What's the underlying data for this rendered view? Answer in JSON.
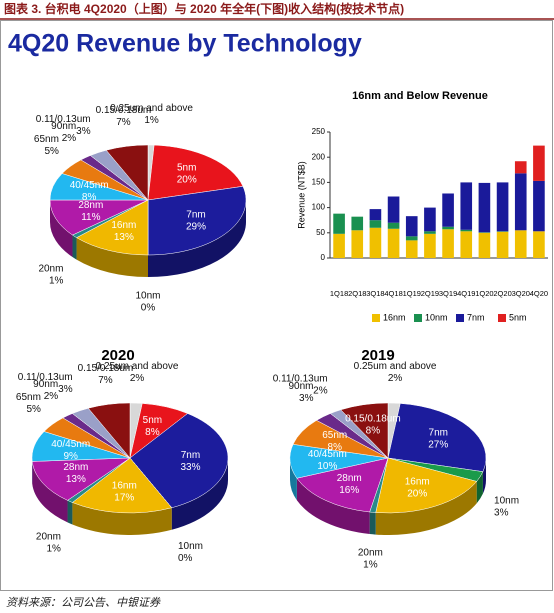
{
  "header": {
    "title": "图表 3. 台积电 4Q2020（上图）与 2020 年全年(下图)收入结构(按技术节点)",
    "subtitle": "4Q20 Revenue by Technology"
  },
  "chart_data": [
    {
      "type": "pie",
      "categories": [
        "0.25um and above",
        "5nm",
        "7nm",
        "10nm",
        "16nm",
        "20nm",
        "28nm",
        "40/45nm",
        "65nm",
        "90nm",
        "0.11/0.13um",
        "0.15/0.18um"
      ],
      "values": [
        1,
        20,
        29,
        0,
        13,
        1,
        11,
        8,
        5,
        2,
        3,
        7
      ],
      "value_labels": [
        "1%",
        "20%",
        "29%",
        "0%",
        "13%",
        "1%",
        "11%",
        "8%",
        "5%",
        "2%",
        "3%",
        "7%"
      ],
      "colors": [
        "#d8d8d8",
        "#e8141c",
        "#1c1c9c",
        "#1a9a4a",
        "#f0b800",
        "#2a8a8a",
        "#b01aa8",
        "#22b8f0",
        "#e87a10",
        "#6a2a8a",
        "#9aa0c8",
        "#8a1010"
      ]
    },
    {
      "type": "bar",
      "title": "16nm and Below Revenue",
      "ylabel": "Revenue (NT$B)",
      "categories": [
        "1Q18",
        "2Q18",
        "3Q18",
        "4Q18",
        "1Q19",
        "2Q19",
        "3Q19",
        "4Q19",
        "1Q20",
        "2Q20",
        "3Q20",
        "4Q20"
      ],
      "series": [
        {
          "name": "16nm",
          "color": "#f0c000",
          "values": [
            48,
            55,
            60,
            58,
            35,
            48,
            57,
            53,
            50,
            52,
            55,
            53
          ]
        },
        {
          "name": "10nm",
          "color": "#1a9050",
          "values": [
            40,
            27,
            15,
            12,
            8,
            5,
            5,
            3,
            1,
            1,
            0,
            0
          ]
        },
        {
          "name": "7nm",
          "color": "#1a1a9a",
          "values": [
            0,
            0,
            22,
            52,
            40,
            47,
            66,
            94,
            98,
            97,
            113,
            100
          ]
        },
        {
          "name": "5nm",
          "color": "#e02020",
          "values": [
            0,
            0,
            0,
            0,
            0,
            0,
            0,
            0,
            0,
            0,
            24,
            70
          ]
        }
      ],
      "ylim": [
        0,
        250
      ],
      "yticks": [
        0,
        50,
        100,
        150,
        200,
        250
      ],
      "stacked": true
    },
    {
      "type": "pie",
      "title": "2020",
      "categories": [
        "0.25um and above",
        "5nm",
        "7nm",
        "10nm",
        "16nm",
        "20nm",
        "28nm",
        "40/45nm",
        "65nm",
        "90nm",
        "0.11/0.13um",
        "0.15/0.18um"
      ],
      "values": [
        2,
        8,
        33,
        0,
        17,
        1,
        13,
        9,
        5,
        2,
        3,
        7
      ],
      "value_labels": [
        "2%",
        "8%",
        "33%",
        "0%",
        "17%",
        "1%",
        "13%",
        "9%",
        "5%",
        "2%",
        "3%",
        "7%"
      ],
      "colors": [
        "#d8d8d8",
        "#e8141c",
        "#1c1c9c",
        "#1a9a4a",
        "#f0b800",
        "#2a8a8a",
        "#b01aa8",
        "#22b8f0",
        "#e87a10",
        "#6a2a8a",
        "#9aa0c8",
        "#8a1010"
      ]
    },
    {
      "type": "pie",
      "title": "2019",
      "categories": [
        "0.25um and above",
        "7nm",
        "10nm",
        "16nm",
        "20nm",
        "28nm",
        "40/45nm",
        "65nm",
        "90nm",
        "0.11/0.13um",
        "0.15/0.18um"
      ],
      "values": [
        2,
        27,
        3,
        20,
        1,
        16,
        10,
        8,
        3,
        2,
        8
      ],
      "value_labels": [
        "2%",
        "27%",
        "3%",
        "20%",
        "1%",
        "16%",
        "10%",
        "8%",
        "3%",
        "2%",
        "8%"
      ],
      "colors": [
        "#d8d8d8",
        "#1c1c9c",
        "#1a9a4a",
        "#f0b800",
        "#2a8a8a",
        "#b01aa8",
        "#22b8f0",
        "#e87a10",
        "#6a2a8a",
        "#9aa0c8",
        "#8a1010"
      ]
    }
  ],
  "source": "资料来源：公司公告、中银证券"
}
